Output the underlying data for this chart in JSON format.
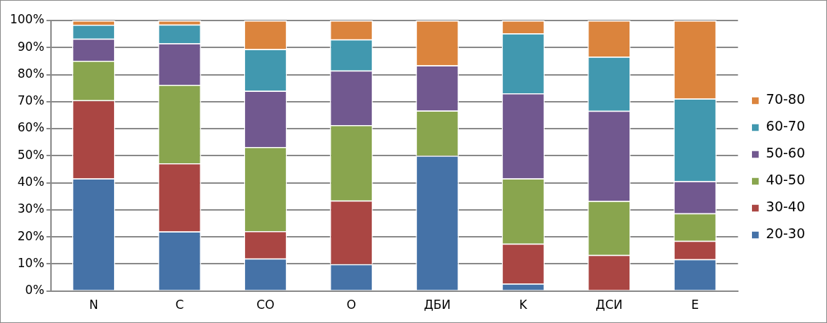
{
  "chart_data": {
    "type": "bar",
    "stacked": true,
    "categories": [
      "N",
      "C",
      "CO",
      "O",
      "ДБИ",
      "K",
      "ДСИ",
      "E"
    ],
    "series": [
      {
        "name": "20-30",
        "color": "#4572a7",
        "values": [
          41.6,
          22,
          12,
          9.9,
          50,
          2.7,
          0,
          11.7
        ]
      },
      {
        "name": "30-40",
        "color": "#aa4643",
        "values": [
          28.9,
          25.2,
          10.1,
          23.5,
          0,
          14.8,
          13.3,
          6.8
        ]
      },
      {
        "name": "40-50",
        "color": "#89a54e",
        "values": [
          14.6,
          29,
          31.1,
          27.9,
          16.7,
          24.1,
          20,
          10.2
        ]
      },
      {
        "name": "50-60",
        "color": "#71588f",
        "values": [
          8.2,
          15.4,
          20.8,
          20.2,
          16.7,
          31.5,
          33.3,
          11.9
        ]
      },
      {
        "name": "60-70",
        "color": "#4198af",
        "values": [
          5.1,
          6.9,
          15.4,
          11.5,
          0,
          22.1,
          20,
          30.5
        ]
      },
      {
        "name": "70-80",
        "color": "#db843d",
        "values": [
          1.6,
          1.5,
          10.6,
          7,
          16.6,
          4.8,
          13.4,
          28.9
        ]
      }
    ],
    "ylim": [
      0,
      100
    ],
    "yticks": [
      {
        "value": 0,
        "label": "0%"
      },
      {
        "value": 10,
        "label": "10%"
      },
      {
        "value": 20,
        "label": "20%"
      },
      {
        "value": 30,
        "label": "30%"
      },
      {
        "value": 40,
        "label": "40%"
      },
      {
        "value": 50,
        "label": "50%"
      },
      {
        "value": 60,
        "label": "60%"
      },
      {
        "value": 70,
        "label": "70%"
      },
      {
        "value": 80,
        "label": "80%"
      },
      {
        "value": 90,
        "label": "90%"
      },
      {
        "value": 100,
        "label": "100%"
      }
    ],
    "grid": "y",
    "legend": "right"
  }
}
